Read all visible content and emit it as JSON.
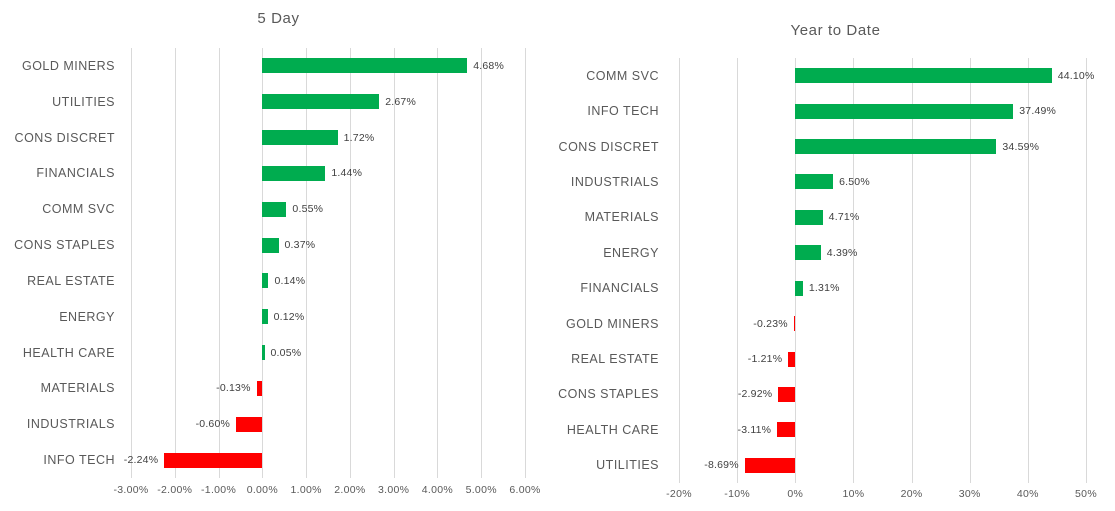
{
  "colors": {
    "positive": "#00ac4f",
    "negative": "#ff0000",
    "gridline": "#d9d9d9",
    "axis_text": "#595959",
    "category_text": "#595959",
    "data_label_text": "#404040",
    "title_text": "#595959",
    "background": "#ffffff"
  },
  "chart_data": [
    {
      "type": "bar",
      "orientation": "horizontal",
      "title": "5 Day",
      "categories": [
        "GOLD MINERS",
        "UTILITIES",
        "CONS DISCRET",
        "FINANCIALS",
        "COMM SVC",
        "CONS STAPLES",
        "REAL ESTATE",
        "ENERGY",
        "HEALTH CARE",
        "MATERIALS",
        "INDUSTRIALS",
        "INFO TECH"
      ],
      "values": [
        4.68,
        2.67,
        1.72,
        1.44,
        0.55,
        0.37,
        0.14,
        0.12,
        0.05,
        -0.13,
        -0.6,
        -2.24
      ],
      "value_labels": [
        "4.68%",
        "2.67%",
        "1.72%",
        "1.44%",
        "0.55%",
        "0.37%",
        "0.14%",
        "0.12%",
        "0.05%",
        "-0.13%",
        "-0.60%",
        "-2.24%"
      ],
      "x_ticks": [
        "-3.00%",
        "-2.00%",
        "-1.00%",
        "0.00%",
        "1.00%",
        "2.00%",
        "3.00%",
        "4.00%",
        "5.00%",
        "6.00%"
      ],
      "xlim": [
        -3,
        6
      ],
      "grid": true,
      "legend": "none",
      "positive_color": "#00ac4f",
      "negative_color": "#ff0000"
    },
    {
      "type": "bar",
      "orientation": "horizontal",
      "title": "Year to Date",
      "categories": [
        "COMM SVC",
        "INFO TECH",
        "CONS DISCRET",
        "INDUSTRIALS",
        "MATERIALS",
        "ENERGY",
        "FINANCIALS",
        "GOLD MINERS",
        "REAL ESTATE",
        "CONS STAPLES",
        "HEALTH CARE",
        "UTILITIES"
      ],
      "values": [
        44.1,
        37.49,
        34.59,
        6.5,
        4.71,
        4.39,
        1.31,
        -0.23,
        -1.21,
        -2.92,
        -3.11,
        -8.69
      ],
      "value_labels": [
        "44.10%",
        "37.49%",
        "34.59%",
        "6.50%",
        "4.71%",
        "4.39%",
        "1.31%",
        "-0.23%",
        "-1.21%",
        "-2.92%",
        "-3.11%",
        "-8.69%"
      ],
      "x_ticks": [
        "-20%",
        "-10%",
        "0%",
        "10%",
        "20%",
        "30%",
        "40%",
        "50%"
      ],
      "xlim": [
        -20,
        50
      ],
      "grid": true,
      "legend": "none",
      "positive_color": "#00ac4f",
      "negative_color": "#ff0000"
    }
  ]
}
